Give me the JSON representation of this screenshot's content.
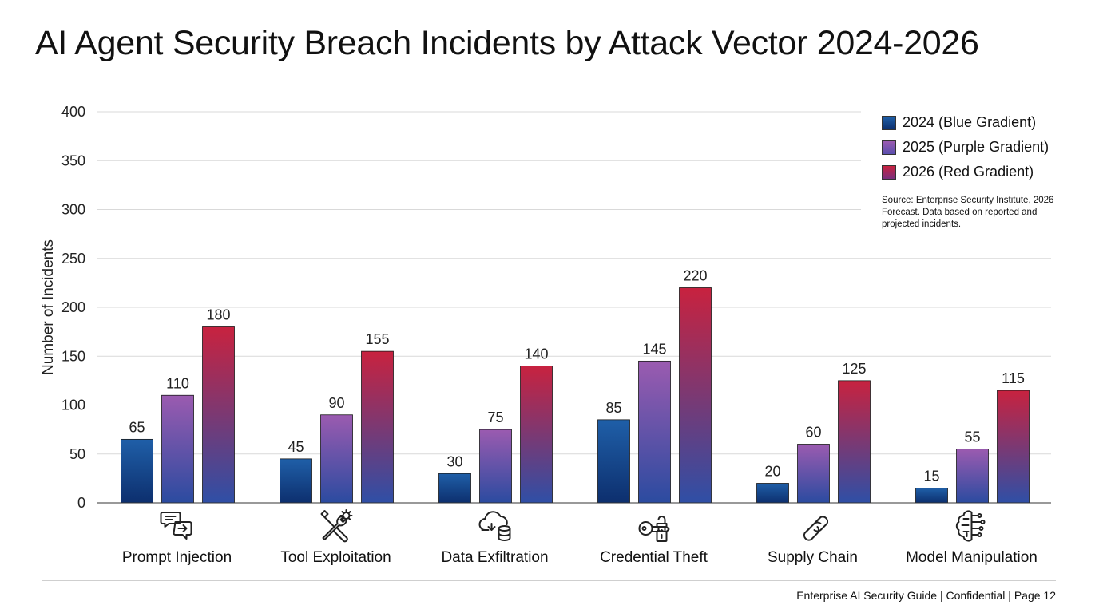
{
  "title": "AI Agent Security Breach Incidents by Attack Vector 2024-2026",
  "chart_data": {
    "type": "bar",
    "title": "AI Agent Security Breach Incidents by Attack Vector 2024-2026",
    "ylabel": "Number of Incidents",
    "xlabel": "",
    "ylim": [
      0,
      400
    ],
    "yticks": [
      0,
      50,
      100,
      150,
      200,
      250,
      300,
      350,
      400
    ],
    "grid": true,
    "legend_position": "top-right",
    "categories": [
      "Prompt Injection",
      "Tool Exploitation",
      "Data Exfiltration",
      "Credential Theft",
      "Supply Chain",
      "Model Manipulation"
    ],
    "category_icons": [
      "chat-arrow-icon",
      "wrench-gear-icon",
      "cloud-database-icon",
      "key-lock-icon",
      "chain-link-icon",
      "brain-circuit-icon"
    ],
    "series": [
      {
        "name": "2024 (Blue Gradient)",
        "values": [
          65,
          45,
          30,
          85,
          20,
          15
        ],
        "color_top": "#1f5fa8",
        "color_bottom": "#0d2f6e"
      },
      {
        "name": "2025 (Purple Gradient)",
        "values": [
          110,
          90,
          75,
          145,
          60,
          55
        ],
        "color_top": "#9b5bb0",
        "color_bottom": "#2b4ba0"
      },
      {
        "name": "2026 (Red Gradient)",
        "values": [
          180,
          155,
          140,
          220,
          125,
          115
        ],
        "color_top": "#c8223f",
        "color_bottom": "#2f4fa6"
      }
    ]
  },
  "source_note": "Source: Enterprise Security Institute, 2026 Forecast. Data based on reported and projected incidents.",
  "footer": "Enterprise AI Security Guide  |  Confidential  |  Page 12"
}
